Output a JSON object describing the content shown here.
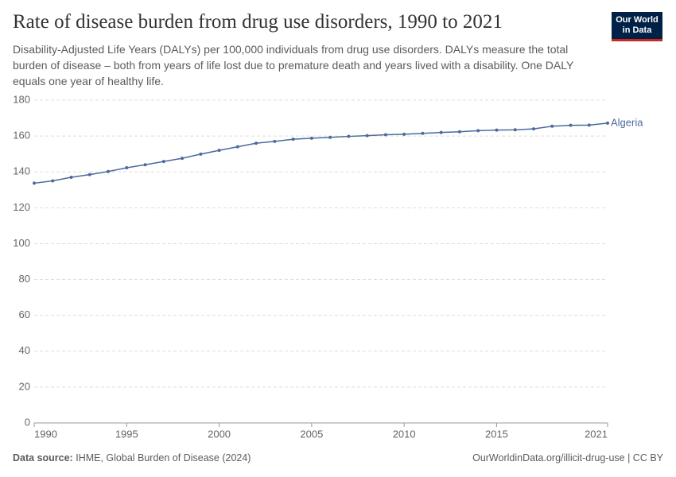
{
  "logo": [
    "Our World",
    "in Data"
  ],
  "chart_data": {
    "type": "line",
    "title": "Rate of disease burden from drug use disorders, 1990 to 2021",
    "subtitle": "Disability-Adjusted Life Years (DALYs) per 100,000 individuals from drug use disorders. DALYs measure the total burden of disease – both from years of life lost due to premature death and years lived with a disability. One DALY equals one year of healthy life.",
    "x": [
      1990,
      1991,
      1992,
      1993,
      1994,
      1995,
      1996,
      1997,
      1998,
      1999,
      2000,
      2001,
      2002,
      2003,
      2004,
      2005,
      2006,
      2007,
      2008,
      2009,
      2010,
      2011,
      2012,
      2013,
      2014,
      2015,
      2016,
      2017,
      2018,
      2019,
      2020,
      2021
    ],
    "series": [
      {
        "name": "Algeria",
        "color": "#4c6a9c",
        "values": [
          133.7,
          135,
          137,
          138.5,
          140.2,
          142.3,
          144,
          145.8,
          147.6,
          149.9,
          152,
          154,
          156,
          157,
          158.2,
          158.8,
          159.3,
          159.8,
          160.2,
          160.7,
          161,
          161.5,
          162,
          162.4,
          163,
          163.3,
          163.5,
          164,
          165.5,
          166,
          166.1,
          167.2
        ]
      }
    ],
    "xlim": [
      1990,
      2021
    ],
    "xticks": [
      1990,
      1995,
      2000,
      2005,
      2010,
      2015,
      2021
    ],
    "ylim": [
      0,
      180
    ],
    "yticks": [
      0,
      20,
      40,
      60,
      80,
      100,
      120,
      140,
      160,
      180
    ],
    "grid": true,
    "source_label": "Data source:",
    "source": "IHME, Global Burden of Disease (2024)",
    "url": "OurWorldinData.org/illicit-drug-use | CC BY"
  }
}
